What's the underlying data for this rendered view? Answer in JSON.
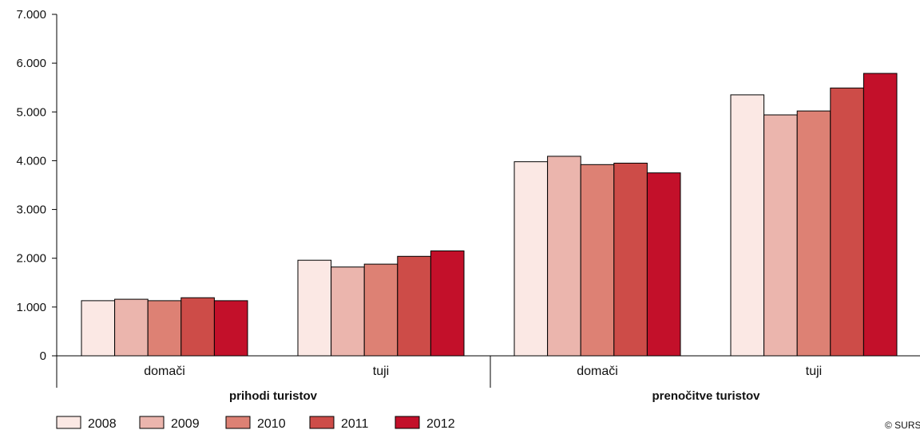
{
  "chart_data": {
    "type": "bar",
    "title": "",
    "xlabel": "",
    "ylabel": "",
    "ylim": [
      0,
      7000
    ],
    "yticks": [
      0,
      1000,
      2000,
      3000,
      4000,
      5000,
      6000,
      7000
    ],
    "ytick_labels": [
      "0",
      "1.000",
      "2.000",
      "3.000",
      "4.000",
      "5.000",
      "6.000",
      "7.000"
    ],
    "grid": false,
    "legend_position": "bottom-left",
    "groups": [
      {
        "label": "prihodi turistov",
        "categories": [
          "domači",
          "tuji"
        ]
      },
      {
        "label": "prenočitve turistov",
        "categories": [
          "domači",
          "tuji"
        ]
      }
    ],
    "categories": [
      "domači",
      "tuji",
      "domači",
      "tuji"
    ],
    "series": [
      {
        "name": "2008",
        "color": "#fbe8e4",
        "values": [
          1130,
          1960,
          3980,
          5350
        ]
      },
      {
        "name": "2009",
        "color": "#ebb5ad",
        "values": [
          1160,
          1820,
          4090,
          4940
        ]
      },
      {
        "name": "2010",
        "color": "#dd8174",
        "values": [
          1130,
          1880,
          3920,
          5020
        ]
      },
      {
        "name": "2011",
        "color": "#cd4c48",
        "values": [
          1190,
          2040,
          3950,
          5490
        ]
      },
      {
        "name": "2012",
        "color": "#c3102a",
        "values": [
          1130,
          2150,
          3750,
          5790
        ]
      }
    ],
    "credit": "© SURS"
  }
}
